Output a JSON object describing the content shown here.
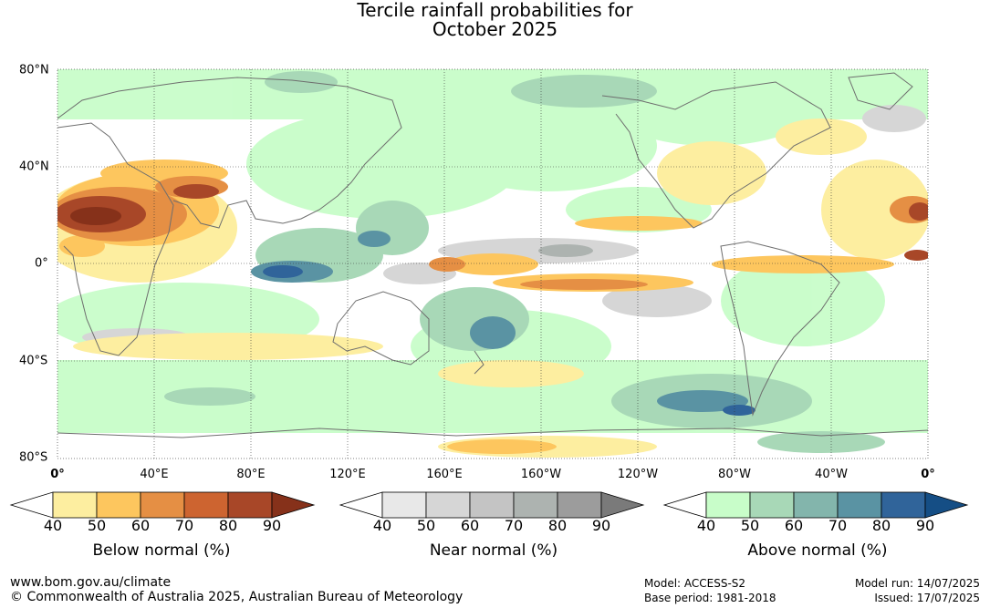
{
  "title": {
    "line1": "Tercile rainfall probabilities for",
    "line2": "October 2025"
  },
  "map": {
    "lon_labels": [
      "0°",
      "40°E",
      "80°E",
      "120°E",
      "160°E",
      "160°W",
      "120°W",
      "80°W",
      "40°W",
      "0°"
    ],
    "lat_labels": [
      "80°N",
      "40°N",
      "0°",
      "40°S",
      "80°S"
    ],
    "grid": true
  },
  "legends": {
    "below": {
      "title": "Below normal (%)",
      "ticks": [
        "40",
        "50",
        "60",
        "70",
        "80",
        "90"
      ],
      "colors": [
        "#ffffff",
        "#fdeea0",
        "#fdc65e",
        "#e58f44",
        "#cd6430",
        "#a84728",
        "#86311a"
      ]
    },
    "near": {
      "title": "Near normal (%)",
      "ticks": [
        "40",
        "50",
        "60",
        "70",
        "80",
        "90"
      ],
      "colors": [
        "#ffffff",
        "#e8e8e8",
        "#d6d6d6",
        "#c4c4c4",
        "#adb3b0",
        "#9c9c9c",
        "#7a7a7a"
      ]
    },
    "above": {
      "title": "Above normal (%)",
      "ticks": [
        "40",
        "50",
        "60",
        "70",
        "80",
        "90"
      ],
      "colors": [
        "#ffffff",
        "#c8fdc9",
        "#a8d8b7",
        "#83b5ac",
        "#5a93a3",
        "#30649a",
        "#154e85"
      ]
    }
  },
  "footer": {
    "url": "www.bom.gov.au/climate",
    "copyright": "© Commonwealth of Australia 2025, Australian Bureau of Meteorology",
    "model": "Model: ACCESS-S2",
    "base_period": "Base period: 1981-2018",
    "model_run": "Model run: 14/07/2025",
    "issued": "Issued: 17/07/2025"
  }
}
